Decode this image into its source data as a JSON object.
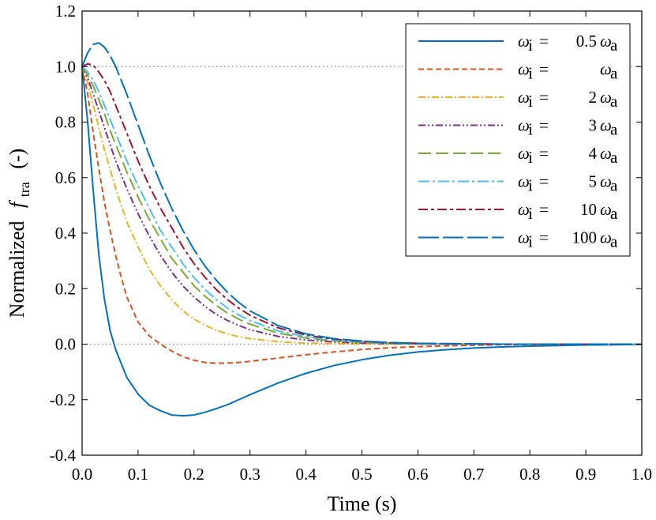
{
  "chart_data": {
    "type": "line",
    "title": "",
    "xlabel": "Time (s)",
    "ylabel_prefix": "Normalized",
    "ylabel_symbol": "f",
    "ylabel_subscript": "tra",
    "ylabel_unit": "(-)",
    "xlim": [
      0.0,
      1.0
    ],
    "ylim": [
      -0.4,
      1.2
    ],
    "xticks": [
      0.0,
      0.1,
      0.2,
      0.3,
      0.4,
      0.5,
      0.6,
      0.7,
      0.8,
      0.9,
      1.0
    ],
    "xtick_labels": [
      "0.0",
      "0.1",
      "0.2",
      "0.3",
      "0.4",
      "0.5",
      "0.6",
      "0.7",
      "0.8",
      "0.9",
      "1.0"
    ],
    "yticks": [
      -0.4,
      -0.2,
      0.0,
      0.2,
      0.4,
      0.6,
      0.8,
      1.0,
      1.2
    ],
    "ytick_labels": [
      "-0.4",
      "-0.2",
      "0.0",
      "0.2",
      "0.4",
      "0.6",
      "0.8",
      "1.0",
      "1.2"
    ],
    "reference_lines": [
      1.0,
      0.0
    ],
    "legend_position": "top-right",
    "x": [
      0,
      0.01,
      0.02,
      0.03,
      0.04,
      0.05,
      0.06,
      0.07,
      0.08,
      0.1,
      0.12,
      0.14,
      0.16,
      0.18,
      0.2,
      0.22,
      0.24,
      0.26,
      0.28,
      0.3,
      0.35,
      0.4,
      0.45,
      0.5,
      0.55,
      0.6,
      0.65,
      0.7,
      0.75,
      0.8,
      0.85,
      0.9,
      0.95,
      1.0
    ],
    "series": [
      {
        "name": "ω_i = 0.5 ω_a",
        "legend_lhs": "ω",
        "legend_sub": "i",
        "legend_eq": "=",
        "legend_coef": "0.5",
        "legend_rhs": "ω",
        "legend_rhs_sub": "a",
        "color": "#0072bd",
        "dash": "",
        "values": [
          1.0,
          0.8,
          0.55,
          0.32,
          0.16,
          0.05,
          -0.02,
          -0.07,
          -0.12,
          -0.18,
          -0.22,
          -0.24,
          -0.255,
          -0.258,
          -0.255,
          -0.245,
          -0.232,
          -0.218,
          -0.2,
          -0.182,
          -0.14,
          -0.105,
          -0.077,
          -0.056,
          -0.04,
          -0.028,
          -0.02,
          -0.014,
          -0.01,
          -0.007,
          -0.005,
          -0.003,
          -0.002,
          -0.001
        ]
      },
      {
        "name": "ω_i = ω_a",
        "legend_lhs": "ω",
        "legend_sub": "i",
        "legend_eq": "=",
        "legend_coef": "",
        "legend_rhs": "ω",
        "legend_rhs_sub": "a",
        "color": "#d95319",
        "dash": "7 4",
        "values": [
          1.0,
          0.9,
          0.76,
          0.63,
          0.51,
          0.41,
          0.32,
          0.24,
          0.17,
          0.08,
          0.03,
          0.0,
          -0.025,
          -0.045,
          -0.058,
          -0.066,
          -0.069,
          -0.068,
          -0.066,
          -0.062,
          -0.05,
          -0.038,
          -0.028,
          -0.019,
          -0.013,
          -0.009,
          -0.006,
          -0.004,
          -0.002,
          -0.001,
          -0.001,
          0,
          0,
          0
        ]
      },
      {
        "name": "ω_i = 2 ω_a",
        "legend_lhs": "ω",
        "legend_sub": "i",
        "legend_eq": "=",
        "legend_coef": "2",
        "legend_rhs": "ω",
        "legend_rhs_sub": "a",
        "color": "#edb120",
        "dash": "9 3 2 3",
        "values": [
          1.0,
          0.94,
          0.86,
          0.78,
          0.7,
          0.63,
          0.56,
          0.5,
          0.44,
          0.35,
          0.27,
          0.21,
          0.16,
          0.12,
          0.09,
          0.068,
          0.05,
          0.037,
          0.027,
          0.02,
          0.009,
          0.004,
          0.002,
          0.001,
          0,
          0,
          0,
          0,
          0,
          0,
          0,
          0,
          0,
          0
        ]
      },
      {
        "name": "ω_i = 3 ω_a",
        "legend_lhs": "ω",
        "legend_sub": "i",
        "legend_eq": "=",
        "legend_coef": "3",
        "legend_rhs": "ω",
        "legend_rhs_sub": "a",
        "color": "#7e2f8e",
        "dash": "9 3 2 3 2 3",
        "values": [
          1.0,
          0.96,
          0.9,
          0.84,
          0.78,
          0.72,
          0.66,
          0.61,
          0.56,
          0.47,
          0.39,
          0.32,
          0.26,
          0.21,
          0.17,
          0.135,
          0.107,
          0.085,
          0.067,
          0.052,
          0.028,
          0.015,
          0.008,
          0.004,
          0.002,
          0.001,
          0,
          0,
          0,
          0,
          0,
          0,
          0,
          0
        ]
      },
      {
        "name": "ω_i = 4 ω_a",
        "legend_lhs": "ω",
        "legend_sub": "i",
        "legend_eq": "=",
        "legend_coef": "4",
        "legend_rhs": "ω",
        "legend_rhs_sub": "a",
        "color": "#77ac30",
        "dash": "16 6",
        "values": [
          1.0,
          0.97,
          0.93,
          0.88,
          0.83,
          0.77,
          0.72,
          0.67,
          0.62,
          0.53,
          0.45,
          0.38,
          0.31,
          0.26,
          0.21,
          0.172,
          0.139,
          0.112,
          0.09,
          0.072,
          0.04,
          0.022,
          0.012,
          0.006,
          0.003,
          0.002,
          0.001,
          0,
          0,
          0,
          0,
          0,
          0,
          0
        ]
      },
      {
        "name": "ω_i = 5 ω_a",
        "legend_lhs": "ω",
        "legend_sub": "i",
        "legend_eq": "=",
        "legend_coef": "5",
        "legend_rhs": "ω",
        "legend_rhs_sub": "a",
        "color": "#4dbeee",
        "dash": "14 4 3 4",
        "values": [
          1.0,
          0.98,
          0.95,
          0.91,
          0.86,
          0.81,
          0.76,
          0.71,
          0.66,
          0.57,
          0.49,
          0.41,
          0.35,
          0.29,
          0.24,
          0.196,
          0.16,
          0.13,
          0.105,
          0.085,
          0.048,
          0.027,
          0.015,
          0.008,
          0.004,
          0.002,
          0.001,
          0,
          0,
          0,
          0,
          0,
          0,
          0
        ]
      },
      {
        "name": "ω_i = 10 ω_a",
        "legend_lhs": "ω",
        "legend_sub": "i",
        "legend_eq": "=",
        "legend_coef": "10",
        "legend_rhs": "ω",
        "legend_rhs_sub": "a",
        "color": "#a2142f",
        "dash": "12 4 4 4",
        "values": [
          1.0,
          1.01,
          1.005,
          0.98,
          0.95,
          0.91,
          0.86,
          0.81,
          0.76,
          0.66,
          0.57,
          0.49,
          0.42,
          0.35,
          0.29,
          0.24,
          0.196,
          0.16,
          0.13,
          0.104,
          0.059,
          0.033,
          0.018,
          0.01,
          0.005,
          0.003,
          0.001,
          0.001,
          0,
          0,
          0,
          0,
          0,
          0
        ]
      },
      {
        "name": "ω_i = 100 ω_a",
        "legend_lhs": "ω",
        "legend_sub": "i",
        "legend_eq": "=",
        "legend_coef": "100",
        "legend_rhs": "ω",
        "legend_rhs_sub": "a",
        "color": "#0072bd",
        "dash": "26 5",
        "values": [
          1.0,
          1.05,
          1.08,
          1.085,
          1.07,
          1.04,
          1.0,
          0.95,
          0.9,
          0.79,
          0.68,
          0.58,
          0.49,
          0.41,
          0.34,
          0.28,
          0.23,
          0.186,
          0.15,
          0.12,
          0.067,
          0.037,
          0.02,
          0.011,
          0.006,
          0.003,
          0.002,
          0.001,
          0,
          0,
          0,
          0,
          0,
          0
        ]
      }
    ]
  }
}
